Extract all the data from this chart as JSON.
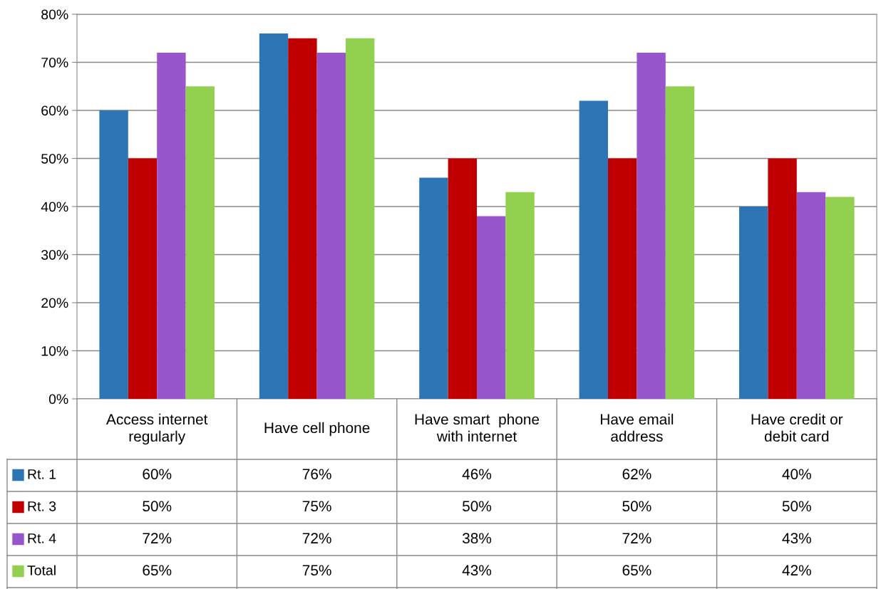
{
  "chart_data": {
    "type": "bar",
    "categories": [
      "Access internet\nregularly",
      "Have cell phone",
      "Have smart  phone\nwith internet",
      "Have email\naddress",
      "Have credit or\ndebit card"
    ],
    "series": [
      {
        "name": "Rt. 1",
        "color": "#2e75b6",
        "values": [
          60,
          76,
          46,
          62,
          40
        ],
        "value_labels": [
          "60%",
          "76%",
          "46%",
          "62%",
          "40%"
        ]
      },
      {
        "name": "Rt. 3",
        "color": "#c00000",
        "values": [
          50,
          75,
          50,
          50,
          50
        ],
        "value_labels": [
          "50%",
          "75%",
          "50%",
          "50%",
          "50%"
        ]
      },
      {
        "name": "Rt. 4",
        "color": "#9955cc",
        "values": [
          72,
          72,
          38,
          72,
          43
        ],
        "value_labels": [
          "72%",
          "72%",
          "38%",
          "72%",
          "43%"
        ]
      },
      {
        "name": "Total",
        "color": "#92d050",
        "values": [
          65,
          75,
          43,
          65,
          42
        ],
        "value_labels": [
          "65%",
          "75%",
          "43%",
          "65%",
          "42%"
        ]
      }
    ],
    "ylim": [
      0,
      80
    ],
    "yticks": [
      {
        "value": 0,
        "label": "0%"
      },
      {
        "value": 10,
        "label": "10%"
      },
      {
        "value": 20,
        "label": "20%"
      },
      {
        "value": 30,
        "label": "30%"
      },
      {
        "value": 40,
        "label": "40%"
      },
      {
        "value": 50,
        "label": "50%"
      },
      {
        "value": 60,
        "label": "60%"
      },
      {
        "value": 70,
        "label": "70%"
      },
      {
        "value": 80,
        "label": "80%"
      }
    ],
    "grid": "y",
    "legend": "bottom"
  }
}
